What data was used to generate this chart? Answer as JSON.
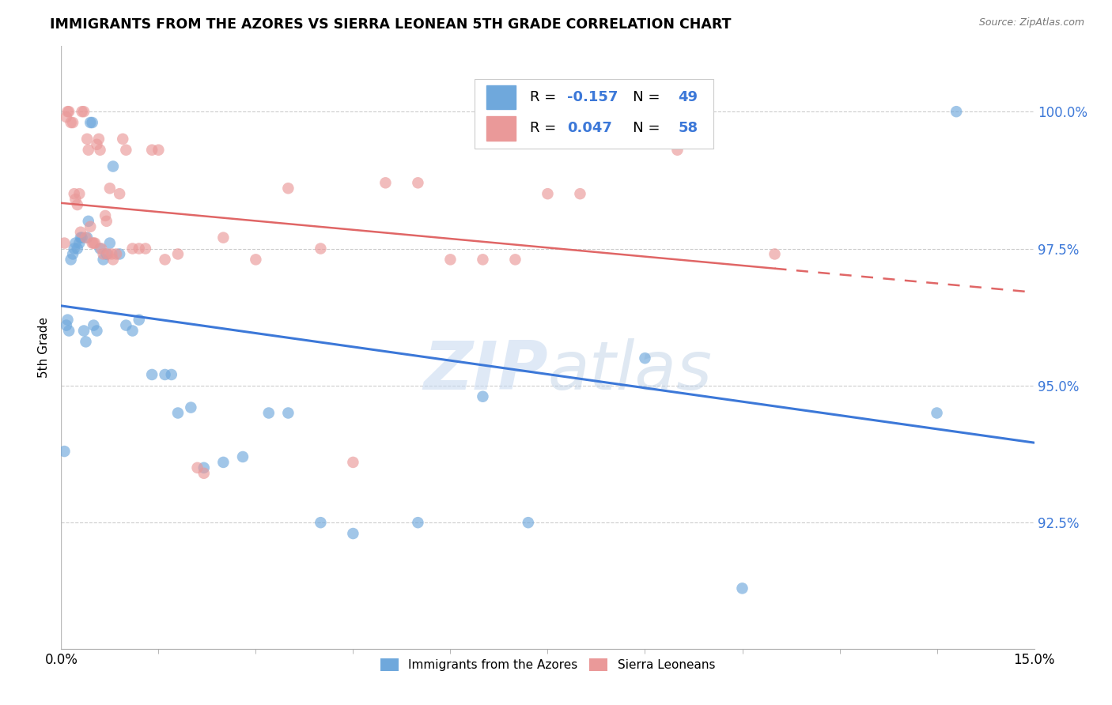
{
  "title": "IMMIGRANTS FROM THE AZORES VS SIERRA LEONEAN 5TH GRADE CORRELATION CHART",
  "source": "Source: ZipAtlas.com",
  "ylabel": "5th Grade",
  "xmin": 0.0,
  "xmax": 15.0,
  "ymin": 90.2,
  "ymax": 101.2,
  "R_blue": -0.157,
  "N_blue": 49,
  "R_pink": 0.047,
  "N_pink": 58,
  "blue_color": "#6fa8dc",
  "pink_color": "#ea9999",
  "blue_line_color": "#3c78d8",
  "pink_line_solid_color": "#e06666",
  "pink_line_dash_color": "#e06666",
  "watermark_color": "#c9d9f0",
  "legend_label_blue": "Immigrants from the Azores",
  "legend_label_pink": "Sierra Leoneans",
  "ytick_vals": [
    92.5,
    95.0,
    97.5,
    100.0
  ],
  "ytick_labels": [
    "92.5%",
    "95.0%",
    "97.5%",
    "100.0%"
  ],
  "blue_x": [
    0.05,
    0.08,
    0.1,
    0.12,
    0.15,
    0.18,
    0.2,
    0.22,
    0.25,
    0.28,
    0.3,
    0.32,
    0.35,
    0.38,
    0.4,
    0.42,
    0.45,
    0.48,
    0.5,
    0.55,
    0.6,
    0.65,
    0.7,
    0.75,
    0.8,
    0.9,
    1.0,
    1.1,
    1.2,
    1.4,
    1.6,
    1.7,
    1.8,
    2.0,
    2.2,
    2.5,
    2.8,
    3.2,
    3.5,
    4.0,
    4.5,
    5.5,
    6.5,
    7.2,
    8.5,
    9.0,
    10.5,
    13.5,
    13.8
  ],
  "blue_y": [
    93.8,
    96.1,
    96.2,
    96.0,
    97.3,
    97.4,
    97.5,
    97.6,
    97.5,
    97.6,
    97.7,
    97.7,
    96.0,
    95.8,
    97.7,
    98.0,
    99.8,
    99.8,
    96.1,
    96.0,
    97.5,
    97.3,
    97.4,
    97.6,
    99.0,
    97.4,
    96.1,
    96.0,
    96.2,
    95.2,
    95.2,
    95.2,
    94.5,
    94.6,
    93.5,
    93.6,
    93.7,
    94.5,
    94.5,
    92.5,
    92.3,
    92.5,
    94.8,
    92.5,
    100.0,
    95.5,
    91.3,
    94.5,
    100.0
  ],
  "pink_x": [
    0.05,
    0.08,
    0.1,
    0.12,
    0.15,
    0.18,
    0.2,
    0.22,
    0.25,
    0.28,
    0.3,
    0.32,
    0.35,
    0.38,
    0.4,
    0.42,
    0.45,
    0.48,
    0.5,
    0.52,
    0.55,
    0.58,
    0.6,
    0.62,
    0.65,
    0.68,
    0.7,
    0.72,
    0.75,
    0.78,
    0.8,
    0.85,
    0.9,
    0.95,
    1.0,
    1.1,
    1.2,
    1.3,
    1.4,
    1.5,
    1.6,
    1.8,
    2.1,
    2.2,
    2.5,
    3.0,
    3.5,
    4.0,
    4.5,
    5.0,
    5.5,
    6.0,
    6.5,
    7.0,
    7.5,
    8.0,
    9.5,
    11.0
  ],
  "pink_y": [
    97.6,
    99.9,
    100.0,
    100.0,
    99.8,
    99.8,
    98.5,
    98.4,
    98.3,
    98.5,
    97.8,
    100.0,
    100.0,
    97.7,
    99.5,
    99.3,
    97.9,
    97.6,
    97.6,
    97.6,
    99.4,
    99.5,
    99.3,
    97.5,
    97.4,
    98.1,
    98.0,
    97.4,
    98.6,
    97.4,
    97.3,
    97.4,
    98.5,
    99.5,
    99.3,
    97.5,
    97.5,
    97.5,
    99.3,
    99.3,
    97.3,
    97.4,
    93.5,
    93.4,
    97.7,
    97.3,
    98.6,
    97.5,
    93.6,
    98.7,
    98.7,
    97.3,
    97.3,
    97.3,
    98.5,
    98.5,
    99.3,
    97.4
  ]
}
